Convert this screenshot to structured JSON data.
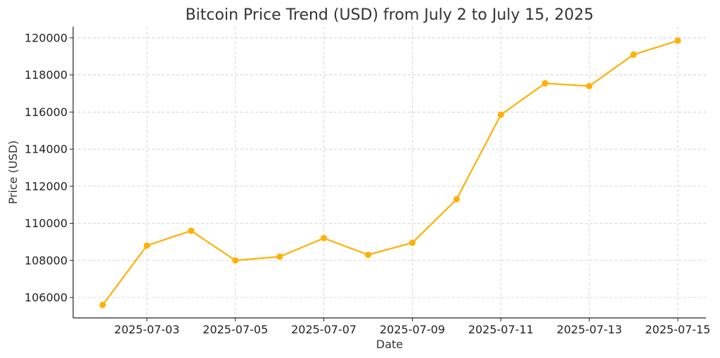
{
  "chart_data": {
    "type": "line",
    "title": "Bitcoin Price Trend (USD) from July 2 to July 15, 2025",
    "xlabel": "Date",
    "ylabel": "Price (USD)",
    "x": [
      "2025-07-02",
      "2025-07-03",
      "2025-07-04",
      "2025-07-05",
      "2025-07-06",
      "2025-07-07",
      "2025-07-08",
      "2025-07-09",
      "2025-07-10",
      "2025-07-11",
      "2025-07-12",
      "2025-07-13",
      "2025-07-14",
      "2025-07-15"
    ],
    "series": [
      {
        "values": [
          105600,
          108800,
          109600,
          108000,
          108200,
          109200,
          108300,
          108950,
          111300,
          115850,
          117550,
          117400,
          119100,
          119850
        ],
        "color": "#FFB000"
      }
    ],
    "xticks": [
      "2025-07-03",
      "2025-07-05",
      "2025-07-07",
      "2025-07-09",
      "2025-07-11",
      "2025-07-13",
      "2025-07-15"
    ],
    "yticks": [
      106000,
      108000,
      110000,
      112000,
      114000,
      116000,
      118000,
      120000
    ],
    "ylim": [
      104900,
      120600
    ],
    "grid": true,
    "legend": "none"
  }
}
